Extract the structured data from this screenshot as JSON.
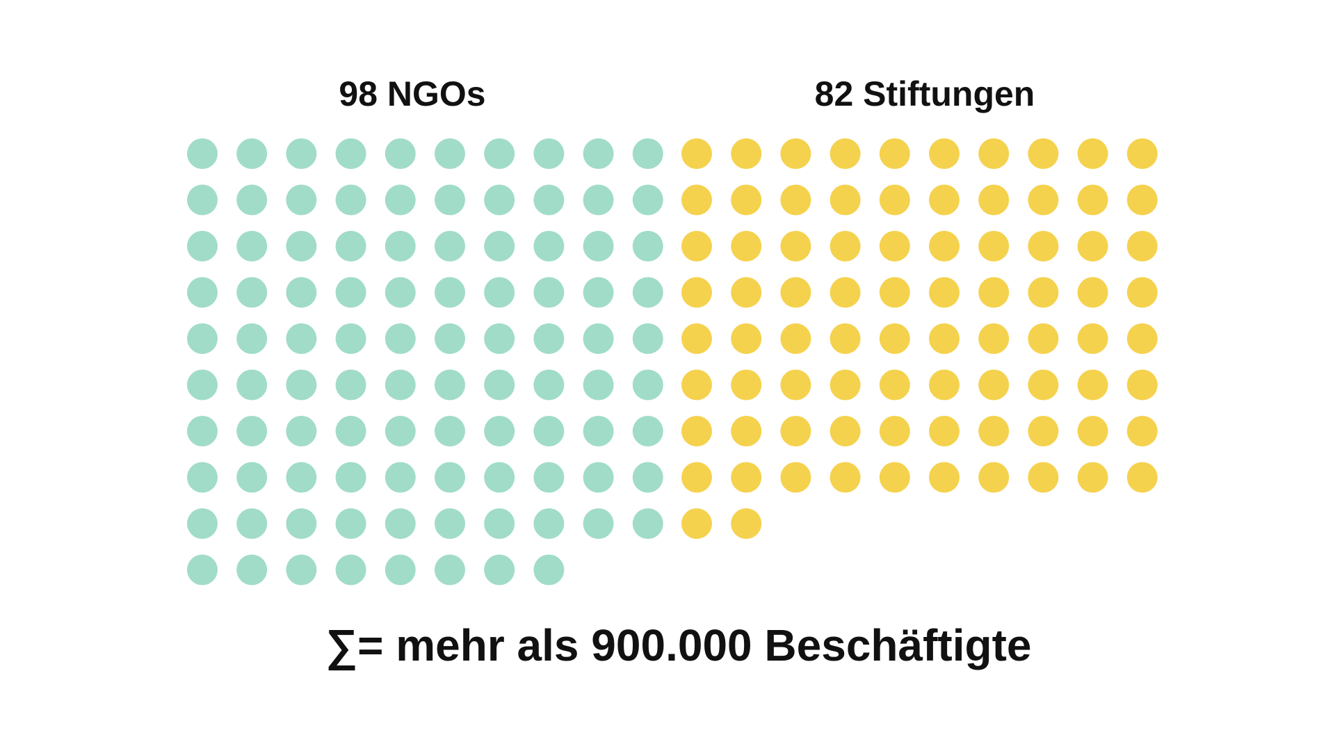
{
  "chart_data": {
    "type": "waffle",
    "series": [
      {
        "name": "98 NGOs",
        "value": 98,
        "color": "#a1dcc8"
      },
      {
        "name": "82 Stiftungen",
        "value": 82,
        "color": "#f5d24e"
      }
    ],
    "columns_per_group": 10,
    "footer": "∑= mehr als 900.000 Beschäftigte"
  }
}
